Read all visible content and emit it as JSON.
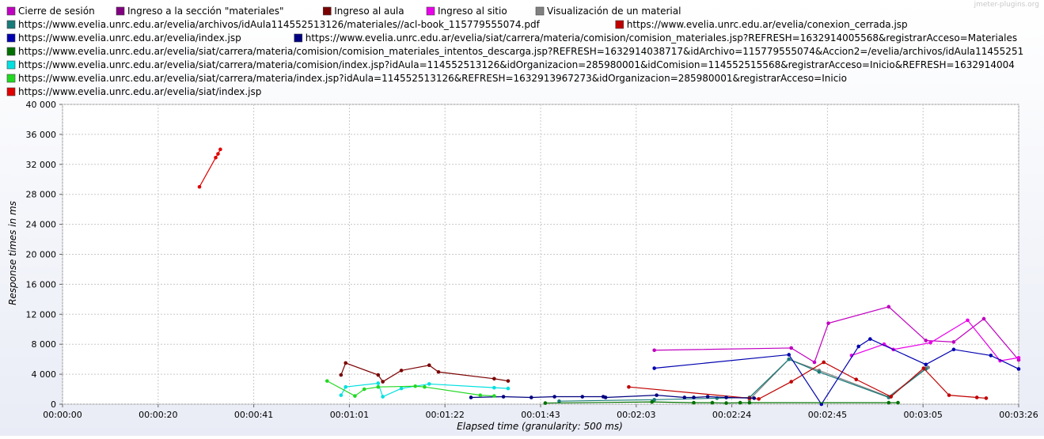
{
  "watermark": "jmeter-plugins.org",
  "colors": {
    "background_top": "#ffffff",
    "background_bottom": "#e9ecf6",
    "plot_background": "#ffffff",
    "grid": "#c8c8c8",
    "axis_text": "#000000"
  },
  "chart_data": {
    "type": "line",
    "title": "",
    "xlabel": "Elapsed time (granularity: 500 ms)",
    "ylabel": "Response times in ms",
    "xlim_seconds": [
      0,
      206
    ],
    "ylim": [
      0,
      40000
    ],
    "x_ticks": [
      "00:00:00",
      "00:00:20",
      "00:00:41",
      "00:01:01",
      "00:01:22",
      "00:01:43",
      "00:02:03",
      "00:02:24",
      "00:02:45",
      "00:03:05",
      "00:03:26"
    ],
    "y_ticks": [
      "0",
      "4 000",
      "8 000",
      "12 000",
      "16 000",
      "20 000",
      "24 000",
      "28 000",
      "32 000",
      "36 000",
      "40 000"
    ],
    "y_tick_values": [
      0,
      4000,
      8000,
      12000,
      16000,
      20000,
      24000,
      28000,
      32000,
      36000,
      40000
    ],
    "grid": true,
    "legend_position": "top",
    "legend_rows": [
      [
        0,
        1,
        2,
        3,
        4
      ],
      [
        5,
        6
      ],
      [
        7,
        8
      ],
      [
        9
      ],
      [
        10
      ],
      [
        11
      ],
      [
        12
      ]
    ],
    "series": [
      {
        "name": "Cierre de sesión",
        "color": "#c000c0",
        "x": [
          127.5,
          157,
          162,
          165,
          178,
          186,
          192,
          198.5,
          206
        ],
        "y": [
          7200,
          7500,
          5600,
          10800,
          13000,
          8500,
          8300,
          11400,
          5900
        ]
      },
      {
        "name": "Ingreso a la sección \"materiales\"",
        "color": "#800080",
        "x": [],
        "y": []
      },
      {
        "name": "Ingreso al aula",
        "color": "#7a0000",
        "x": [
          60,
          61,
          68,
          69,
          73,
          79,
          81,
          93,
          96
        ],
        "y": [
          3900,
          5500,
          3900,
          3000,
          4500,
          5200,
          4300,
          3400,
          3100
        ]
      },
      {
        "name": "Ingreso al sitio",
        "color": "#e800e8",
        "x": [
          170,
          177,
          179,
          187,
          195,
          202,
          206
        ],
        "y": [
          6500,
          8000,
          7300,
          8200,
          11200,
          5800,
          6200
        ]
      },
      {
        "name": "Visualización de un material",
        "color": "#808080",
        "x": [
          148,
          156.5,
          163,
          178,
          186,
          186.5
        ],
        "y": [
          600,
          6000,
          4500,
          1000,
          4800,
          4900
        ]
      },
      {
        "name": "https://www.evelia.unrc.edu.ar/evelia/archivos/idAula114552513126/materiales//acl-book_115779555074.pdf",
        "color": "#1a7a7a",
        "x": [
          107,
          127.5,
          141,
          148,
          156.5,
          163,
          178,
          186
        ],
        "y": [
          400,
          600,
          800,
          900,
          6000,
          4300,
          900,
          4700
        ]
      },
      {
        "name": "https://www.evelia.unrc.edu.ar/evelia/conexion_cerrada.jsp",
        "color": "#c00000",
        "x": [
          122,
          148,
          150,
          157,
          164,
          171,
          178.5,
          185.5,
          191,
          197,
          199
        ],
        "y": [
          2300,
          800,
          700,
          3000,
          5600,
          3300,
          1000,
          4800,
          1200,
          900,
          800
        ]
      },
      {
        "name": "https://www.evelia.unrc.edu.ar/evelia/index.jsp",
        "color": "#0000b0",
        "x": [
          127.5,
          156.5,
          163.5,
          171.5,
          174,
          186,
          192,
          200,
          206
        ],
        "y": [
          4800,
          6600,
          0,
          7700,
          8700,
          5300,
          7300,
          6500,
          4700
        ]
      },
      {
        "name": "https://www.evelia.unrc.edu.ar/evelia/siat/carrera/materia/comision/comision_materiales.jsp?REFRESH=1632914005568&registrarAcceso=Materiales",
        "color": "#000080",
        "x": [
          88,
          95,
          101,
          106,
          112,
          116.5,
          117,
          128,
          134,
          136,
          139,
          143,
          149
        ],
        "y": [
          900,
          1000,
          900,
          1000,
          1000,
          1000,
          900,
          1200,
          900,
          900,
          1000,
          900,
          800
        ]
      },
      {
        "name": "https://www.evelia.unrc.edu.ar/evelia/siat/carrera/materia/comision/comision_materiales_intentos_descarga.jsp?REFRESH=1632914038717&idArchivo=115779555074&Accion2=/evelia/archivos/idAula11455251",
        "color": "#007000",
        "x": [
          104,
          127,
          136,
          140,
          143,
          146,
          148,
          178,
          180
        ],
        "y": [
          150,
          300,
          200,
          200,
          150,
          200,
          200,
          200,
          200
        ]
      },
      {
        "name": "https://www.evelia.unrc.edu.ar/evelia/siat/carrera/materia/comision/index.jsp?idAula=114552513126&idOrganizacion=285980001&idComision=114552515568&registrarAcceso=Inicio&REFRESH=1632914004",
        "color": "#00e0e0",
        "x": [
          60,
          61,
          68,
          69,
          73,
          79,
          93,
          96
        ],
        "y": [
          1200,
          2300,
          2800,
          1000,
          2100,
          2700,
          2200,
          2100
        ]
      },
      {
        "name": "https://www.evelia.unrc.edu.ar/evelia/siat/carrera/materia/index.jsp?idAula=114552513126&REFRESH=1632913967273&idOrganizacion=285980001&registrarAcceso=Inicio",
        "color": "#22d822",
        "x": [
          57,
          63,
          65,
          68,
          76,
          78,
          90,
          93
        ],
        "y": [
          3100,
          1100,
          2000,
          2300,
          2400,
          2300,
          1200,
          1100
        ]
      },
      {
        "name": "https://www.evelia.unrc.edu.ar/evelia/siat/index.jsp",
        "color": "#e00000",
        "x": [
          29.5,
          33,
          33.5,
          34
        ],
        "y": [
          29000,
          32900,
          33400,
          34000
        ]
      }
    ]
  }
}
